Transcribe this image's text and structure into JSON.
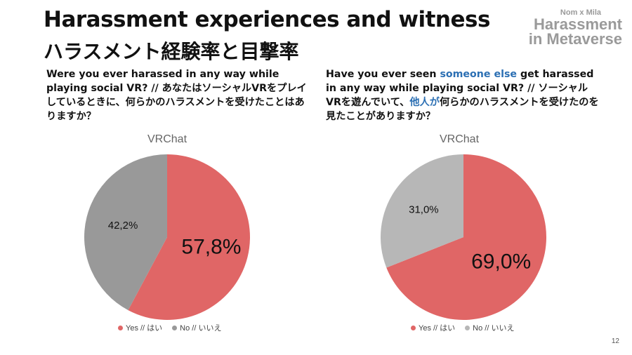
{
  "slide": {
    "title_en": "Harassment experiences and witness",
    "title_jp": "ハラスメント経験率と目撃率",
    "page_number": "12"
  },
  "logo": {
    "small_text": "Nom x Mila",
    "line1": "Harassment",
    "line2": "in Metaverse"
  },
  "questions": {
    "left": {
      "text": "Were you ever harassed in any way while playing social VR? // あなたはソーシャルVRをプレイしているときに、何らかのハラスメントを受けたことはありますか？"
    },
    "right": {
      "part1": "Have you ever seen ",
      "highlight1": "someone else",
      "part2": " get harassed in any way while playing social VR? // ソーシャルVRを遊んでいて、",
      "highlight2": "他人が",
      "part3": "何らかのハラスメントを受けたのを見たことがありますか？"
    }
  },
  "colors": {
    "yes": "#e06666",
    "no_left": "#999999",
    "no_right": "#b7b7b7",
    "highlight": "#2b6fb3"
  },
  "legend": {
    "yes_label": "Yes // はい",
    "no_label": "No // いいえ"
  },
  "chart_data": [
    {
      "type": "pie",
      "title": "VRChat",
      "categories": [
        "Yes // はい",
        "No // いいえ"
      ],
      "values": [
        57.8,
        42.2
      ],
      "labels": [
        "57,8%",
        "42,2%"
      ],
      "colors": [
        "#e06666",
        "#999999"
      ],
      "legend_position": "bottom"
    },
    {
      "type": "pie",
      "title": "VRChat",
      "categories": [
        "Yes // はい",
        "No // いいえ"
      ],
      "values": [
        69.0,
        31.0
      ],
      "labels": [
        "69,0%",
        "31,0%"
      ],
      "colors": [
        "#e06666",
        "#b7b7b7"
      ],
      "legend_position": "bottom"
    }
  ]
}
